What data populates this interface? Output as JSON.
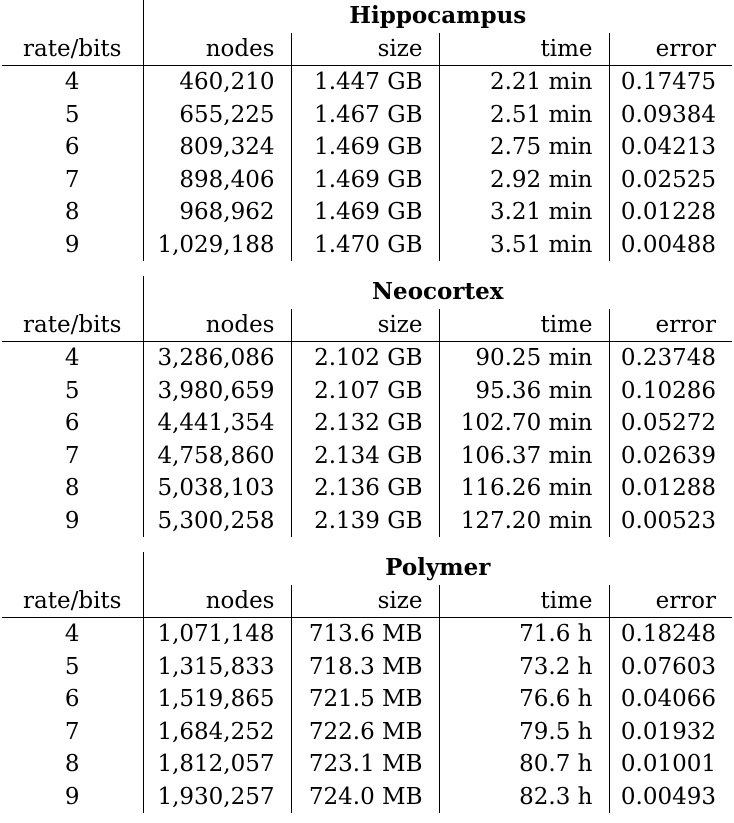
{
  "sections": [
    {
      "title": "Hippocampus",
      "headers": [
        "rate/bits",
        "nodes",
        "size",
        "time",
        "error"
      ],
      "rows": [
        [
          "4",
          "460,210",
          "1.447 GB",
          "2.21 min",
          "0.17475"
        ],
        [
          "5",
          "655,225",
          "1.467 GB",
          "2.51 min",
          "0.09384"
        ],
        [
          "6",
          "809,324",
          "1.469 GB",
          "2.75 min",
          "0.04213"
        ],
        [
          "7",
          "898,406",
          "1.469 GB",
          "2.92 min",
          "0.02525"
        ],
        [
          "8",
          "968,962",
          "1.469 GB",
          "3.21 min",
          "0.01228"
        ],
        [
          "9",
          "1,029,188",
          "1.470 GB",
          "3.51 min",
          "0.00488"
        ]
      ]
    },
    {
      "title": "Neocortex",
      "headers": [
        "rate/bits",
        "nodes",
        "size",
        "time",
        "error"
      ],
      "rows": [
        [
          "4",
          "3,286,086",
          "2.102 GB",
          "90.25 min",
          "0.23748"
        ],
        [
          "5",
          "3,980,659",
          "2.107 GB",
          "95.36 min",
          "0.10286"
        ],
        [
          "6",
          "4,441,354",
          "2.132 GB",
          "102.70 min",
          "0.05272"
        ],
        [
          "7",
          "4,758,860",
          "2.134 GB",
          "106.37 min",
          "0.02639"
        ],
        [
          "8",
          "5,038,103",
          "2.136 GB",
          "116.26 min",
          "0.01288"
        ],
        [
          "9",
          "5,300,258",
          "2.139 GB",
          "127.20 min",
          "0.00523"
        ]
      ]
    },
    {
      "title": "Polymer",
      "headers": [
        "rate/bits",
        "nodes",
        "size",
        "time",
        "error"
      ],
      "rows": [
        [
          "4",
          "1,071,148",
          "713.6 MB",
          "71.6 h",
          "0.18248"
        ],
        [
          "5",
          "1,315,833",
          "718.3 MB",
          "73.2 h",
          "0.07603"
        ],
        [
          "6",
          "1,519,865",
          "721.5 MB",
          "76.6 h",
          "0.04066"
        ],
        [
          "7",
          "1,684,252",
          "722.6 MB",
          "79.5 h",
          "0.01932"
        ],
        [
          "8",
          "1,812,057",
          "723.1 MB",
          "80.7 h",
          "0.01001"
        ],
        [
          "9",
          "1,930,257",
          "724.0 MB",
          "82.3 h",
          "0.00493"
        ]
      ]
    }
  ]
}
